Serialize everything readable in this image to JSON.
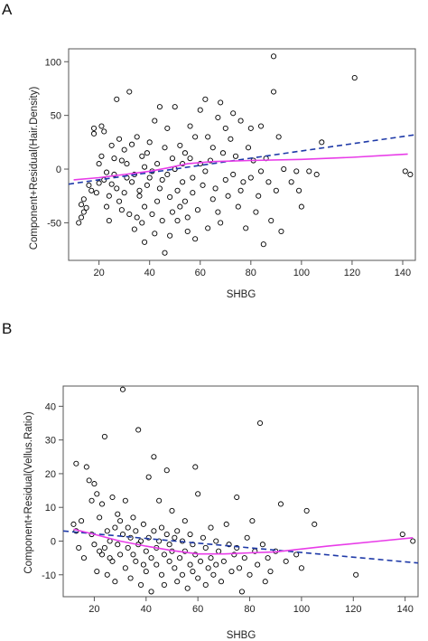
{
  "colors": {
    "points": "#000000",
    "lowess": "#e83ce8",
    "fit": "#1f3aa8",
    "axis": "#555555"
  },
  "chart_data": [
    {
      "panel_label": "A",
      "type": "scatter",
      "xlabel": "SHBG",
      "ylabel": "Component+Residual(Hair.Density)",
      "xlim": [
        8,
        145
      ],
      "ylim": [
        -85,
        112
      ],
      "xticks": [
        20,
        40,
        60,
        80,
        100,
        120,
        140
      ],
      "yticks": [
        -50,
        0,
        50,
        100
      ],
      "grid": false,
      "points": [
        [
          12,
          -50
        ],
        [
          13,
          -45
        ],
        [
          13,
          -33
        ],
        [
          14,
          -28
        ],
        [
          14,
          -40
        ],
        [
          15,
          -36
        ],
        [
          16,
          -15
        ],
        [
          17,
          -20
        ],
        [
          18,
          33
        ],
        [
          18,
          38
        ],
        [
          19,
          -22
        ],
        [
          20,
          5
        ],
        [
          20,
          -13
        ],
        [
          21,
          40
        ],
        [
          21,
          12
        ],
        [
          22,
          35
        ],
        [
          22,
          -10
        ],
        [
          23,
          -3
        ],
        [
          23,
          -35
        ],
        [
          24,
          -25
        ],
        [
          24,
          -48
        ],
        [
          25,
          -14
        ],
        [
          25,
          22
        ],
        [
          26,
          10
        ],
        [
          26,
          -5
        ],
        [
          27,
          65
        ],
        [
          27,
          -18
        ],
        [
          28,
          -30
        ],
        [
          28,
          28
        ],
        [
          29,
          8
        ],
        [
          29,
          -38
        ],
        [
          30,
          -22
        ],
        [
          30,
          18
        ],
        [
          31,
          -8
        ],
        [
          31,
          5
        ],
        [
          32,
          -42
        ],
        [
          32,
          72
        ],
        [
          33,
          23
        ],
        [
          33,
          -12
        ],
        [
          34,
          -5
        ],
        [
          34,
          -56
        ],
        [
          35,
          30
        ],
        [
          35,
          -45
        ],
        [
          36,
          -20
        ],
        [
          36,
          -25
        ],
        [
          37,
          12
        ],
        [
          37,
          -50
        ],
        [
          38,
          2
        ],
        [
          38,
          -35
        ],
        [
          38,
          -68
        ],
        [
          39,
          15
        ],
        [
          39,
          -15
        ],
        [
          40,
          -8
        ],
        [
          40,
          25
        ],
        [
          41,
          -42
        ],
        [
          41,
          -2
        ],
        [
          42,
          -60
        ],
        [
          42,
          45
        ],
        [
          43,
          -30
        ],
        [
          43,
          5
        ],
        [
          44,
          -18
        ],
        [
          44,
          58
        ],
        [
          45,
          -48
        ],
        [
          45,
          -10
        ],
        [
          46,
          -78
        ],
        [
          46,
          20
        ],
        [
          47,
          -5
        ],
        [
          47,
          38
        ],
        [
          48,
          -62
        ],
        [
          48,
          -26
        ],
        [
          49,
          10
        ],
        [
          49,
          -40
        ],
        [
          50,
          0
        ],
        [
          50,
          58
        ],
        [
          51,
          -20
        ],
        [
          51,
          -48
        ],
        [
          52,
          22
        ],
        [
          52,
          -35
        ],
        [
          53,
          5
        ],
        [
          53,
          -12
        ],
        [
          54,
          -30
        ],
        [
          54,
          15
        ],
        [
          55,
          -45
        ],
        [
          55,
          -58
        ],
        [
          56,
          10
        ],
        [
          56,
          40
        ],
        [
          57,
          -8
        ],
        [
          57,
          -22
        ],
        [
          58,
          30
        ],
        [
          58,
          -65
        ],
        [
          59,
          -38
        ],
        [
          60,
          55
        ],
        [
          60,
          5
        ],
        [
          61,
          -15
        ],
        [
          62,
          65
        ],
        [
          62,
          -2
        ],
        [
          63,
          -55
        ],
        [
          63,
          30
        ],
        [
          64,
          8
        ],
        [
          65,
          -28
        ],
        [
          65,
          20
        ],
        [
          66,
          -18
        ],
        [
          67,
          48
        ],
        [
          67,
          -40
        ],
        [
          68,
          62
        ],
        [
          68,
          -50
        ],
        [
          69,
          15
        ],
        [
          70,
          -10
        ],
        [
          70,
          38
        ],
        [
          71,
          -25
        ],
        [
          72,
          28
        ],
        [
          73,
          52
        ],
        [
          73,
          -5
        ],
        [
          74,
          12
        ],
        [
          75,
          -35
        ],
        [
          76,
          45
        ],
        [
          76,
          -20
        ],
        [
          77,
          -12
        ],
        [
          78,
          -55
        ],
        [
          79,
          20
        ],
        [
          80,
          -8
        ],
        [
          80,
          38
        ],
        [
          81,
          8
        ],
        [
          82,
          -40
        ],
        [
          83,
          -25
        ],
        [
          84,
          40
        ],
        [
          84,
          -2
        ],
        [
          85,
          -70
        ],
        [
          86,
          10
        ],
        [
          87,
          -12
        ],
        [
          88,
          -48
        ],
        [
          89,
          105
        ],
        [
          89,
          72
        ],
        [
          90,
          -20
        ],
        [
          91,
          30
        ],
        [
          92,
          -58
        ],
        [
          93,
          0
        ],
        [
          96,
          -12
        ],
        [
          98,
          -2
        ],
        [
          99,
          -20
        ],
        [
          100,
          -35
        ],
        [
          103,
          -2
        ],
        [
          106,
          -5
        ],
        [
          108,
          25
        ],
        [
          121,
          85
        ],
        [
          141,
          -2
        ],
        [
          143,
          -5
        ]
      ],
      "fit_line": [
        [
          8,
          -14
        ],
        [
          145,
          32
        ]
      ],
      "lowess": [
        [
          10,
          -10
        ],
        [
          20,
          -8
        ],
        [
          30,
          -5
        ],
        [
          40,
          -2
        ],
        [
          47,
          1
        ],
        [
          55,
          5
        ],
        [
          65,
          7
        ],
        [
          80,
          8
        ],
        [
          100,
          9
        ],
        [
          120,
          11
        ],
        [
          142,
          14
        ]
      ]
    },
    {
      "panel_label": "B",
      "type": "scatter",
      "xlabel": "SHBG",
      "ylabel": "Component+Residual(Vellus.Ratio)",
      "xlim": [
        8,
        145
      ],
      "ylim": [
        -16.5,
        46
      ],
      "xticks": [
        20,
        40,
        60,
        80,
        100,
        120,
        140
      ],
      "yticks": [
        -10,
        0,
        10,
        20,
        30,
        40
      ],
      "grid": false,
      "points": [
        [
          12,
          5
        ],
        [
          13,
          23
        ],
        [
          13,
          3
        ],
        [
          14,
          -2
        ],
        [
          15,
          6
        ],
        [
          16,
          -5
        ],
        [
          17,
          22
        ],
        [
          18,
          18
        ],
        [
          19,
          12
        ],
        [
          19,
          2
        ],
        [
          20,
          17
        ],
        [
          20,
          -1
        ],
        [
          21,
          14
        ],
        [
          21,
          -9
        ],
        [
          22,
          -3
        ],
        [
          22,
          7
        ],
        [
          23,
          11
        ],
        [
          23,
          -4
        ],
        [
          24,
          31
        ],
        [
          24,
          -2
        ],
        [
          25,
          3
        ],
        [
          25,
          -10
        ],
        [
          26,
          -5
        ],
        [
          26,
          0
        ],
        [
          27,
          13
        ],
        [
          27,
          -6
        ],
        [
          28,
          4
        ],
        [
          28,
          -12
        ],
        [
          29,
          -1
        ],
        [
          29,
          8
        ],
        [
          30,
          6
        ],
        [
          30,
          -4
        ],
        [
          31,
          45
        ],
        [
          31,
          2
        ],
        [
          32,
          -8
        ],
        [
          32,
          12
        ],
        [
          33,
          -2
        ],
        [
          33,
          4
        ],
        [
          34,
          1
        ],
        [
          34,
          -11
        ],
        [
          35,
          -4
        ],
        [
          35,
          7
        ],
        [
          36,
          3
        ],
        [
          36,
          -6
        ],
        [
          37,
          33
        ],
        [
          37,
          -1
        ],
        [
          38,
          0
        ],
        [
          38,
          -13
        ],
        [
          39,
          -7
        ],
        [
          39,
          5
        ],
        [
          40,
          -9
        ],
        [
          40,
          -3
        ],
        [
          41,
          19
        ],
        [
          41,
          1
        ],
        [
          42,
          -5
        ],
        [
          42,
          -15
        ],
        [
          43,
          25
        ],
        [
          43,
          3
        ],
        [
          44,
          -2
        ],
        [
          44,
          -7
        ],
        [
          45,
          12
        ],
        [
          45,
          0
        ],
        [
          46,
          -10
        ],
        [
          46,
          4
        ],
        [
          47,
          -4
        ],
        [
          47,
          -13
        ],
        [
          48,
          21
        ],
        [
          48,
          2
        ],
        [
          49,
          -6
        ],
        [
          49,
          -1
        ],
        [
          50,
          -3
        ],
        [
          50,
          9
        ],
        [
          51,
          -8
        ],
        [
          51,
          1
        ],
        [
          52,
          -12
        ],
        [
          52,
          3
        ],
        [
          53,
          -5
        ],
        [
          54,
          0
        ],
        [
          54,
          -10
        ],
        [
          55,
          6
        ],
        [
          55,
          -3
        ],
        [
          56,
          -14
        ],
        [
          57,
          -7
        ],
        [
          57,
          2
        ],
        [
          58,
          -1
        ],
        [
          58,
          -9
        ],
        [
          59,
          22
        ],
        [
          59,
          -4
        ],
        [
          60,
          14
        ],
        [
          60,
          -11
        ],
        [
          61,
          -6
        ],
        [
          62,
          1
        ],
        [
          63,
          -2
        ],
        [
          63,
          -13
        ],
        [
          64,
          -8
        ],
        [
          65,
          4
        ],
        [
          65,
          -5
        ],
        [
          66,
          -10
        ],
        [
          67,
          0
        ],
        [
          67,
          -7
        ],
        [
          68,
          -3
        ],
        [
          69,
          -12
        ],
        [
          70,
          -6
        ],
        [
          71,
          5
        ],
        [
          72,
          -1
        ],
        [
          73,
          -9
        ],
        [
          74,
          -4
        ],
        [
          75,
          13
        ],
        [
          75,
          -2
        ],
        [
          76,
          -8
        ],
        [
          77,
          -15
        ],
        [
          78,
          -5
        ],
        [
          79,
          1
        ],
        [
          80,
          -10
        ],
        [
          81,
          6
        ],
        [
          82,
          -3
        ],
        [
          83,
          -7
        ],
        [
          84,
          35
        ],
        [
          85,
          -1
        ],
        [
          86,
          -12
        ],
        [
          87,
          -5
        ],
        [
          88,
          -9
        ],
        [
          90,
          -3
        ],
        [
          92,
          11
        ],
        [
          94,
          -6
        ],
        [
          98,
          -4
        ],
        [
          100,
          -8
        ],
        [
          102,
          9
        ],
        [
          105,
          5
        ],
        [
          121,
          -10
        ],
        [
          139,
          2
        ],
        [
          143,
          0
        ]
      ],
      "fit_line": [
        [
          8,
          3
        ],
        [
          145,
          -6.5
        ]
      ],
      "lowess": [
        [
          12,
          3.5
        ],
        [
          20,
          2
        ],
        [
          30,
          0
        ],
        [
          40,
          -1.5
        ],
        [
          50,
          -2.8
        ],
        [
          60,
          -3.8
        ],
        [
          70,
          -3.8
        ],
        [
          80,
          -3.5
        ],
        [
          90,
          -3.2
        ],
        [
          110,
          -1.5
        ],
        [
          130,
          0
        ],
        [
          143,
          1
        ]
      ]
    }
  ]
}
